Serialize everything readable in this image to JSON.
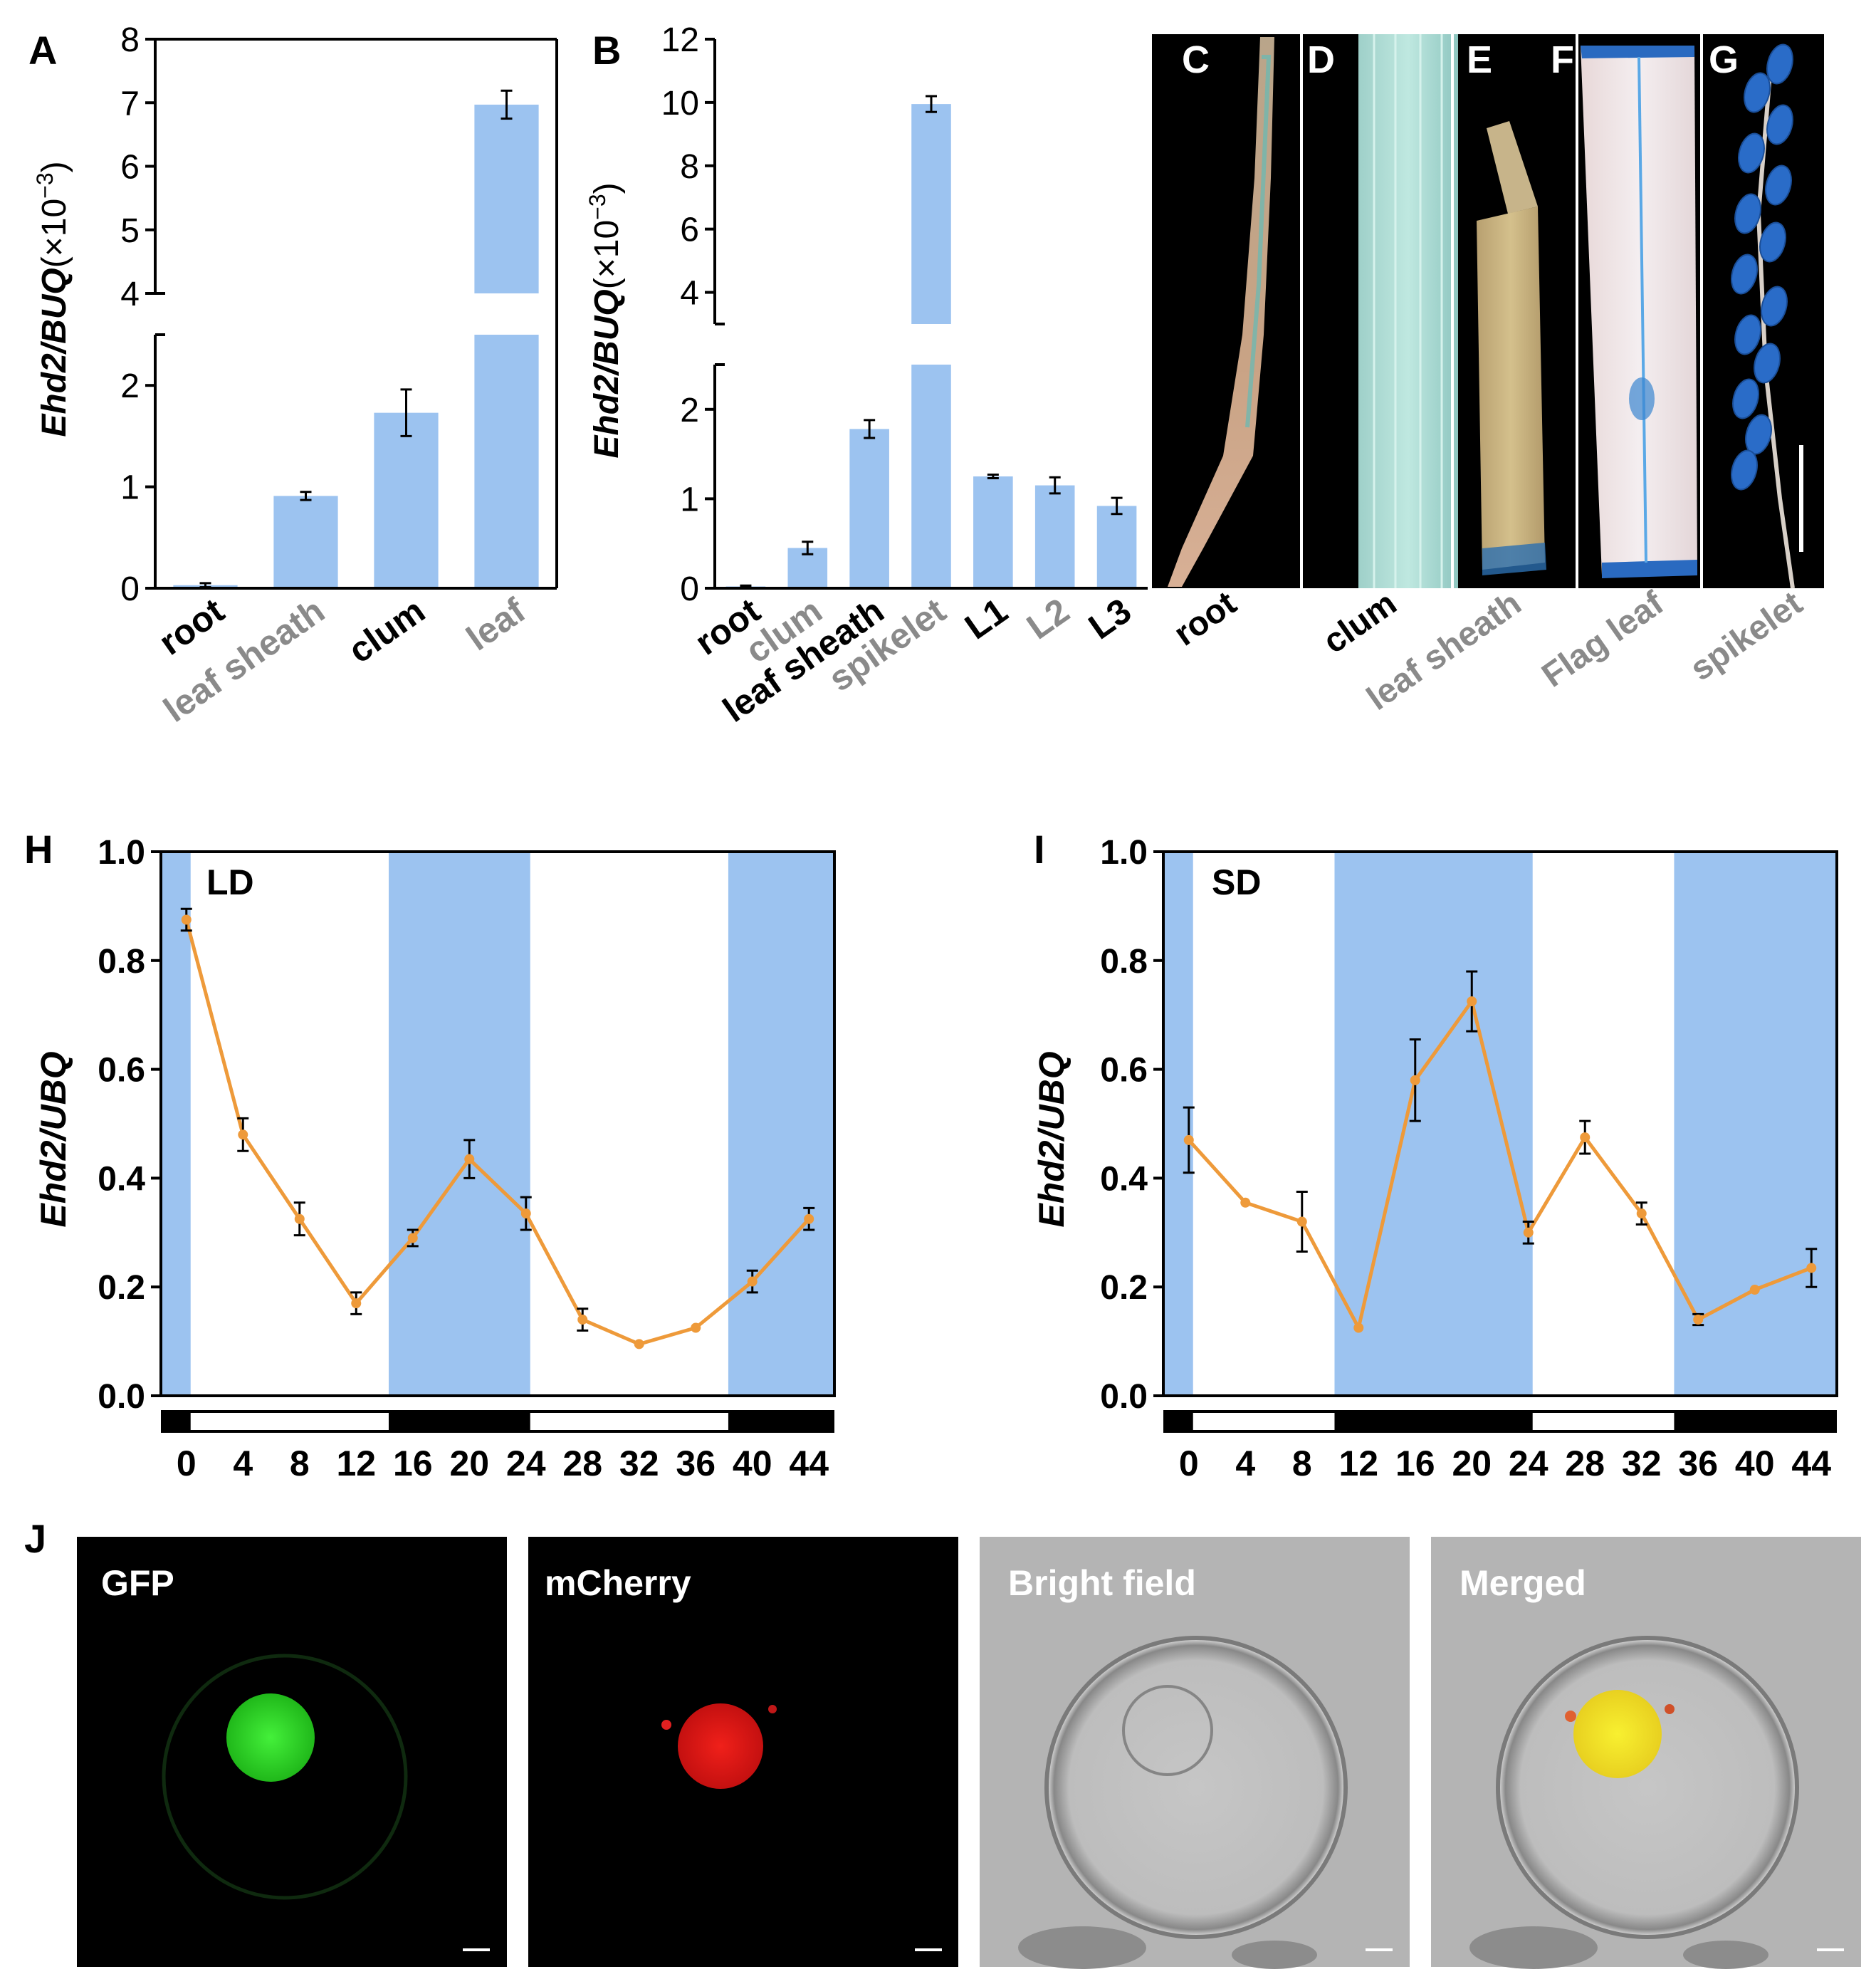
{
  "colors": {
    "bar": "#9cc3f0",
    "line": "#ee9a3a",
    "shade": "#9cc3f0",
    "axis": "#000000"
  },
  "panels": {
    "A": {
      "letter": "A"
    },
    "B": {
      "letter": "B"
    },
    "C": {
      "letter": "C",
      "label": "root"
    },
    "D": {
      "letter": "D",
      "label": "clum"
    },
    "E": {
      "letter": "E",
      "label": "leaf sheath"
    },
    "F": {
      "letter": "F",
      "label": "Flag leaf"
    },
    "G": {
      "letter": "G",
      "label": "spikelet"
    },
    "H": {
      "letter": "H",
      "condition": "LD"
    },
    "I": {
      "letter": "I",
      "condition": "SD"
    },
    "J": {
      "letter": "J",
      "images": [
        "GFP",
        "mCherry",
        "Bright field",
        "Merged"
      ]
    }
  },
  "chart_data": [
    {
      "id": "A",
      "type": "bar",
      "ylabel_italic": "Ehd2/BUQ",
      "ylabel_suffix": "(×10",
      "ylabel_exp": "−3",
      "ylabel_close": ")",
      "axis_break": true,
      "lower_range": [
        0,
        2.5
      ],
      "upper_range": [
        4,
        8
      ],
      "lower_ticks": [
        "0",
        "1",
        "2"
      ],
      "upper_ticks": [
        "4",
        "5",
        "6",
        "7",
        "8"
      ],
      "categories": [
        "root",
        "leaf sheath",
        "clum",
        "leaf"
      ],
      "values": [
        0.03,
        0.91,
        1.73,
        6.97
      ],
      "errors": [
        0.02,
        0.04,
        0.23,
        0.22
      ]
    },
    {
      "id": "B",
      "type": "bar",
      "ylabel_italic": "Ehd2/BUQ",
      "ylabel_suffix": "(×10",
      "ylabel_exp": "−3",
      "ylabel_close": ")",
      "axis_break": true,
      "lower_range": [
        0,
        2.5
      ],
      "upper_range": [
        3,
        12
      ],
      "lower_ticks": [
        "0",
        "1",
        "2"
      ],
      "upper_ticks": [
        "4",
        "6",
        "8",
        "10",
        "12"
      ],
      "categories": [
        "root",
        "clum",
        "leaf sheath",
        "spikelet",
        "L1",
        "L2",
        "L3"
      ],
      "values": [
        0.02,
        0.45,
        1.78,
        9.95,
        1.25,
        1.15,
        0.92
      ],
      "errors": [
        0.01,
        0.07,
        0.1,
        0.25,
        0.02,
        0.09,
        0.09
      ]
    },
    {
      "id": "H",
      "type": "line",
      "ylabel_italic": "Ehd2/UBQ",
      "ylim": [
        0,
        1
      ],
      "yticks": [
        "0.0",
        "0.2",
        "0.4",
        "0.6",
        "0.8",
        "1.0"
      ],
      "x": [
        0,
        4,
        8,
        12,
        16,
        20,
        24,
        28,
        32,
        36,
        40,
        44
      ],
      "xlim": [
        -1.8,
        45.8
      ],
      "values": [
        0.875,
        0.48,
        0.325,
        0.17,
        0.29,
        0.435,
        0.335,
        0.14,
        0.095,
        0.125,
        0.21,
        0.325
      ],
      "errors": [
        0.02,
        0.03,
        0.03,
        0.02,
        0.015,
        0.035,
        0.03,
        0.02,
        0.0,
        0.0,
        0.02,
        0.02
      ],
      "dark_periods": [
        [
          -1.8,
          0.3
        ],
        [
          14.3,
          24.3
        ],
        [
          38.3,
          45.8
        ]
      ],
      "light_periods": [
        [
          0.3,
          14.3
        ],
        [
          24.3,
          38.3
        ]
      ]
    },
    {
      "id": "I",
      "type": "line",
      "ylabel_italic": "Ehd2/UBQ",
      "ylim": [
        0,
        1
      ],
      "yticks": [
        "0.0",
        "0.2",
        "0.4",
        "0.6",
        "0.8",
        "1.0"
      ],
      "x": [
        0,
        4,
        8,
        12,
        16,
        20,
        24,
        28,
        32,
        36,
        40,
        44
      ],
      "xlim": [
        -1.8,
        45.8
      ],
      "values": [
        0.47,
        0.355,
        0.32,
        0.125,
        0.58,
        0.725,
        0.3,
        0.475,
        0.335,
        0.14,
        0.195,
        0.235
      ],
      "errors": [
        0.06,
        0.0,
        0.055,
        0.0,
        0.075,
        0.055,
        0.02,
        0.03,
        0.02,
        0.01,
        0.0,
        0.035
      ],
      "dark_periods": [
        [
          -1.8,
          0.3
        ],
        [
          10.3,
          24.3
        ],
        [
          34.3,
          45.8
        ]
      ],
      "light_periods": [
        [
          0.3,
          10.3
        ],
        [
          24.3,
          34.3
        ]
      ]
    }
  ]
}
